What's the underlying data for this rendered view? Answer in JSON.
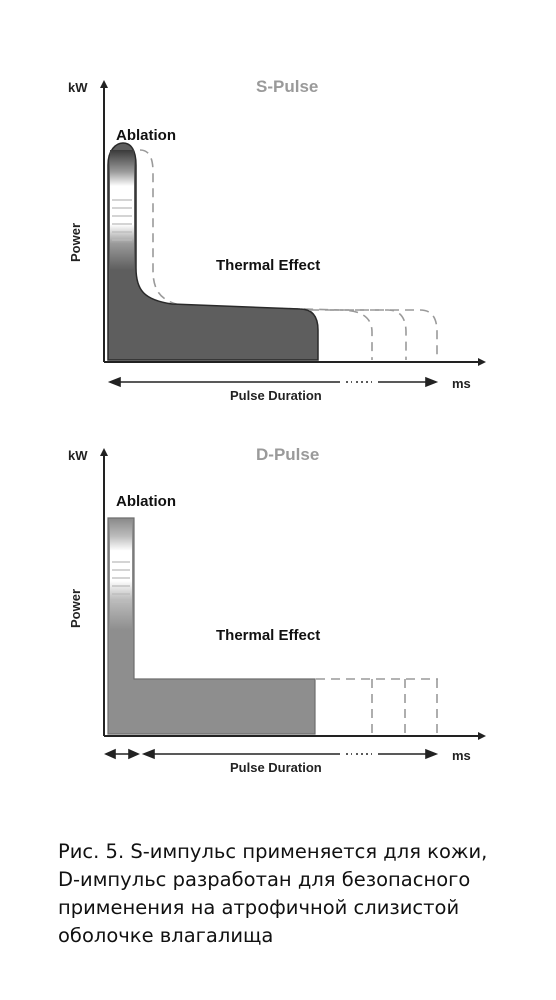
{
  "diagrams": [
    {
      "title": "S-Pulse",
      "y_unit": "kW",
      "y_label": "Power",
      "x_unit": "ms",
      "duration_label": "Pulse Duration",
      "peak_label": "Ablation",
      "plateau_label": "Thermal Effect",
      "fill_color": "#5e5e5e"
    },
    {
      "title": "D-Pulse",
      "y_unit": "kW",
      "y_label": "Power",
      "x_unit": "ms",
      "duration_label": "Pulse Duration",
      "peak_label": "Ablation",
      "plateau_label": "Thermal Effect",
      "fill_color": "#8e8e8e"
    }
  ],
  "caption": {
    "lines": [
      "Рис. 5. S-импульс применяется для кожи,",
      "D-импульс разработан для безопасного",
      "применения на атрофичной слизистой",
      "оболочке влагалища"
    ]
  }
}
